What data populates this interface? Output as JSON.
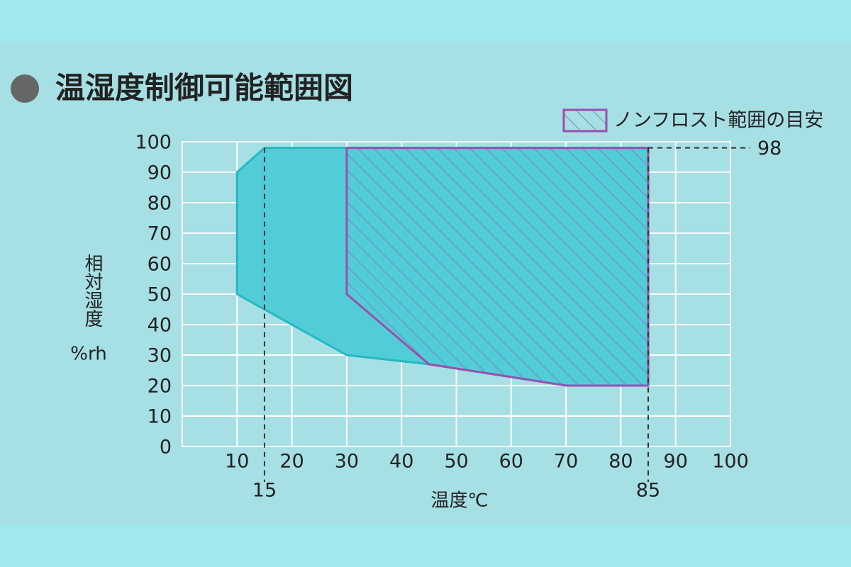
{
  "chart_data": {
    "type": "area",
    "title": "温湿度制御可能範囲図",
    "xlabel": "温度℃",
    "ylabel": "相対湿度",
    "yunit": "%rh",
    "xlim": [
      0,
      100
    ],
    "ylim": [
      0,
      100
    ],
    "xticks": [
      10,
      20,
      30,
      40,
      50,
      60,
      70,
      80,
      90,
      100
    ],
    "yticks": [
      0,
      10,
      20,
      30,
      40,
      50,
      60,
      70,
      80,
      90,
      100
    ],
    "grid": true,
    "x_markers": [
      15,
      85
    ],
    "y_markers": [
      98
    ],
    "series": [
      {
        "color": "#25b8c2",
        "fill": "#52cdd8",
        "x": [
          10,
          10,
          15,
          85,
          85,
          70,
          45,
          30
        ],
        "values": [
          50,
          90,
          98,
          98,
          20,
          20,
          27,
          30
        ]
      },
      {
        "name": "ノンフロスト範囲の目安",
        "color": "#9a4fae",
        "fill": "#7f6fb5",
        "x": [
          30,
          85,
          85,
          70,
          45,
          30
        ],
        "values": [
          98,
          98,
          20,
          20,
          27,
          50
        ]
      }
    ]
  }
}
